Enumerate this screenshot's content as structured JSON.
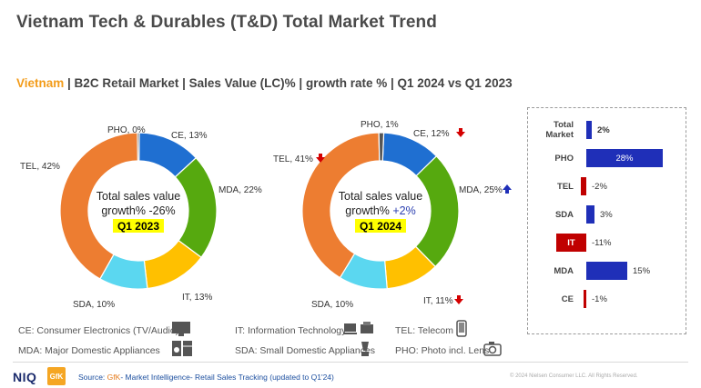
{
  "title": "Vietnam Tech & Durables (T&D) Total Market Trend",
  "subtitle": {
    "country": "Vietnam",
    "rest": " | B2C Retail Market | Sales Value (LC)% | growth rate % | Q1 2024 vs Q1 2023"
  },
  "chart_data": [
    {
      "type": "pie",
      "variant": "donut",
      "period": "Q1 2023",
      "center_line1": "Total sales value",
      "center_line2": "growth% -26%",
      "center_period": "Q1 2023",
      "slices": [
        {
          "name": "CE",
          "value": 13,
          "color": "#1f6fd1",
          "label": "CE, 13%"
        },
        {
          "name": "MDA",
          "value": 22,
          "color": "#56a90f",
          "label": "MDA, 22%"
        },
        {
          "name": "IT",
          "value": 13,
          "color": "#ffc000",
          "label": "IT, 13%"
        },
        {
          "name": "SDA",
          "value": 10,
          "color": "#5bd7f0",
          "label": "SDA, 10%"
        },
        {
          "name": "TEL",
          "value": 42,
          "color": "#ed7d31",
          "label": "TEL, 42%"
        },
        {
          "name": "PHO",
          "value": 0,
          "color": "#555555",
          "label": "PHO, 0%"
        }
      ]
    },
    {
      "type": "pie",
      "variant": "donut",
      "period": "Q1 2024",
      "center_line1": "Total sales value",
      "center_line2": "growth%",
      "center_growth": "+2%",
      "center_period": "Q1 2024",
      "slices": [
        {
          "name": "CE",
          "value": 12,
          "color": "#1f6fd1",
          "label": "CE, 12%",
          "trend": "down"
        },
        {
          "name": "MDA",
          "value": 25,
          "color": "#56a90f",
          "label": "MDA, 25%",
          "trend": "up"
        },
        {
          "name": "IT",
          "value": 11,
          "color": "#ffc000",
          "label": "IT, 11%",
          "trend": "down"
        },
        {
          "name": "SDA",
          "value": 10,
          "color": "#5bd7f0",
          "label": "SDA, 10%"
        },
        {
          "name": "TEL",
          "value": 41,
          "color": "#ed7d31",
          "label": "TEL, 41%",
          "trend": "down"
        },
        {
          "name": "PHO",
          "value": 1,
          "color": "#555555",
          "label": "PHO, 1%"
        }
      ]
    },
    {
      "type": "bar",
      "orientation": "horizontal",
      "categories": [
        "Total Market",
        "PHO",
        "TEL",
        "SDA",
        "IT",
        "MDA",
        "CE"
      ],
      "values": [
        2,
        28,
        -2,
        3,
        -11,
        15,
        -1
      ],
      "value_labels": [
        "2%",
        "28%",
        "-2%",
        "3%",
        "-11%",
        "15%",
        "-1%"
      ],
      "positive_color": "#1f2fb8",
      "negative_color": "#c00000"
    }
  ],
  "legend": [
    {
      "text": "CE: Consumer Electronics (TV/Audio)",
      "icon": "tv-icon"
    },
    {
      "text": "IT: Information Technology",
      "icon": "laptop-printer-icon"
    },
    {
      "text": "TEL: Telecom",
      "icon": "phone-icon"
    },
    {
      "text": "MDA: Major Domestic Appliances",
      "icon": "washer-fridge-icon"
    },
    {
      "text": "SDA: Small Domestic Appliances",
      "icon": "mixer-icon"
    },
    {
      "text": "PHO: Photo incl. Lens",
      "icon": "camera-icon"
    }
  ],
  "footer": {
    "logo_niq": "NIQ",
    "logo_gfk": "GfK",
    "source_prefix": "Source: ",
    "source_gfk": "GfK",
    "source_rest": "- Market Intelligence- Retail Sales Tracking (updated to Q1'24)",
    "copyright": "© 2024 Nielsen Consumer LLC. All Rights Reserved."
  }
}
